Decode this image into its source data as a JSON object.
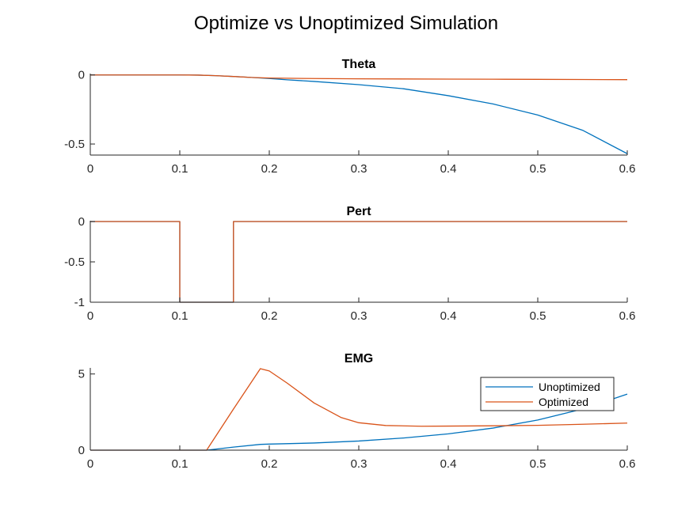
{
  "figure": {
    "title": "Optimize vs Unoptimized Simulation"
  },
  "colors": {
    "unoptimized": "#0072BD",
    "optimized": "#D95319",
    "axis": "#262626",
    "background": "#ffffff"
  },
  "legend": {
    "entries": [
      "Unoptimized",
      "Optimized"
    ],
    "location": "inside top-right of EMG axes"
  },
  "chart_data": [
    {
      "type": "line",
      "title": "Theta",
      "xlabel": "",
      "ylabel": "",
      "xlim": [
        0,
        0.6
      ],
      "ylim": [
        -0.58,
        0.01
      ],
      "xticks": [
        0,
        0.1,
        0.2,
        0.3,
        0.4,
        0.5,
        0.6
      ],
      "xtick_labels": [
        "0",
        "0.1",
        "0.2",
        "0.3",
        "0.4",
        "0.5",
        "0.6"
      ],
      "yticks": [
        0,
        -0.5
      ],
      "ytick_labels": [
        "0",
        "-0.5"
      ],
      "grid": false,
      "series": [
        {
          "name": "Unoptimized",
          "x": [
            0,
            0.1,
            0.12,
            0.14,
            0.16,
            0.18,
            0.2,
            0.22,
            0.25,
            0.3,
            0.35,
            0.4,
            0.45,
            0.5,
            0.55,
            0.6
          ],
          "y": [
            0,
            0,
            -0.001,
            -0.005,
            -0.011,
            -0.018,
            -0.026,
            -0.035,
            -0.047,
            -0.07,
            -0.1,
            -0.15,
            -0.21,
            -0.29,
            -0.4,
            -0.57
          ]
        },
        {
          "name": "Optimized",
          "x": [
            0,
            0.1,
            0.12,
            0.14,
            0.16,
            0.18,
            0.2,
            0.25,
            0.3,
            0.35,
            0.4,
            0.45,
            0.5,
            0.55,
            0.6
          ],
          "y": [
            0,
            0,
            -0.001,
            -0.005,
            -0.011,
            -0.018,
            -0.022,
            -0.026,
            -0.028,
            -0.029,
            -0.03,
            -0.031,
            -0.032,
            -0.033,
            -0.034
          ]
        }
      ]
    },
    {
      "type": "line",
      "title": "Pert",
      "xlabel": "",
      "ylabel": "",
      "xlim": [
        0,
        0.6
      ],
      "ylim": [
        -1,
        0.01
      ],
      "xticks": [
        0,
        0.1,
        0.2,
        0.3,
        0.4,
        0.5,
        0.6
      ],
      "xtick_labels": [
        "0",
        "0.1",
        "0.2",
        "0.3",
        "0.4",
        "0.5",
        "0.6"
      ],
      "yticks": [
        0,
        -0.5,
        -1
      ],
      "ytick_labels": [
        "0",
        "-0.5",
        "-1"
      ],
      "grid": false,
      "series": [
        {
          "name": "Unoptimized",
          "x": [
            0,
            0.1,
            0.1,
            0.16,
            0.16,
            0.6
          ],
          "y": [
            0,
            0,
            -1,
            -1,
            0,
            0
          ]
        },
        {
          "name": "Optimized",
          "x": [
            0,
            0.1,
            0.1,
            0.16,
            0.16,
            0.6
          ],
          "y": [
            0,
            0,
            -1,
            -1,
            0,
            0
          ]
        }
      ]
    },
    {
      "type": "line",
      "title": "EMG",
      "xlabel": "",
      "ylabel": "",
      "xlim": [
        0,
        0.6
      ],
      "ylim": [
        0,
        5.4
      ],
      "xticks": [
        0,
        0.1,
        0.2,
        0.3,
        0.4,
        0.5,
        0.6
      ],
      "xtick_labels": [
        "0",
        "0.1",
        "0.2",
        "0.3",
        "0.4",
        "0.5",
        "0.6"
      ],
      "yticks": [
        0,
        5
      ],
      "ytick_labels": [
        "0",
        "5"
      ],
      "grid": false,
      "series": [
        {
          "name": "Unoptimized",
          "x": [
            0,
            0.13,
            0.16,
            0.19,
            0.2,
            0.25,
            0.3,
            0.35,
            0.4,
            0.45,
            0.5,
            0.55,
            0.6
          ],
          "y": [
            0,
            0,
            0.2,
            0.38,
            0.4,
            0.47,
            0.6,
            0.8,
            1.07,
            1.45,
            1.98,
            2.7,
            3.68
          ]
        },
        {
          "name": "Optimized",
          "x": [
            0,
            0.13,
            0.16,
            0.19,
            0.2,
            0.22,
            0.25,
            0.28,
            0.3,
            0.33,
            0.37,
            0.4,
            0.45,
            0.5,
            0.55,
            0.6
          ],
          "y": [
            0,
            0,
            2.7,
            5.35,
            5.2,
            4.4,
            3.1,
            2.15,
            1.8,
            1.62,
            1.57,
            1.58,
            1.6,
            1.63,
            1.7,
            1.78
          ]
        }
      ]
    }
  ]
}
